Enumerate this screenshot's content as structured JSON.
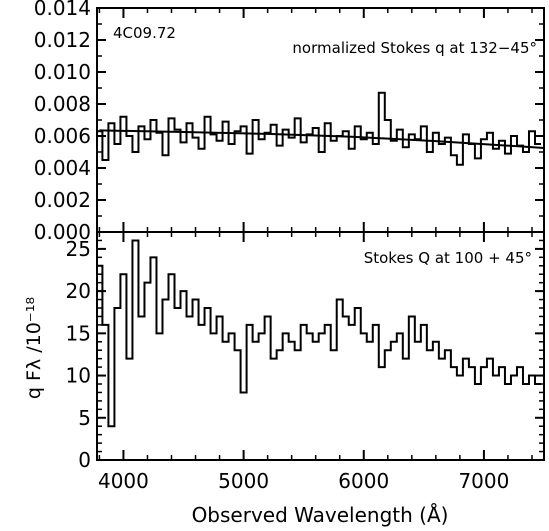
{
  "chart_data": [
    {
      "type": "line",
      "panel": "top",
      "object_label": "4C09.72",
      "annotation": "normalized Stokes q at 132−45°",
      "ylim": [
        0.0,
        0.014
      ],
      "yticks": [
        "0.000",
        "0.002",
        "0.004",
        "0.006",
        "0.008",
        "0.010",
        "0.012",
        "0.014"
      ],
      "xlim": [
        3780,
        7500
      ],
      "grid": false,
      "series": [
        {
          "style": "histogram-step",
          "x": [
            3800,
            3850,
            3900,
            3950,
            4000,
            4050,
            4100,
            4150,
            4200,
            4250,
            4300,
            4350,
            4400,
            4450,
            4500,
            4550,
            4600,
            4650,
            4700,
            4750,
            4800,
            4850,
            4900,
            4950,
            5000,
            5050,
            5100,
            5150,
            5200,
            5250,
            5300,
            5350,
            5400,
            5450,
            5500,
            5550,
            5600,
            5650,
            5700,
            5750,
            5800,
            5850,
            5900,
            5950,
            6000,
            6050,
            6100,
            6150,
            6200,
            6250,
            6300,
            6350,
            6400,
            6450,
            6500,
            6550,
            6600,
            6650,
            6700,
            6750,
            6800,
            6850,
            6900,
            6950,
            7000,
            7050,
            7100,
            7150,
            7200,
            7250,
            7300,
            7350,
            7400,
            7450
          ],
          "values": [
            0.0063,
            0.0045,
            0.0068,
            0.0055,
            0.0072,
            0.006,
            0.005,
            0.0066,
            0.0058,
            0.007,
            0.0062,
            0.0048,
            0.0071,
            0.0064,
            0.0056,
            0.0068,
            0.0059,
            0.0052,
            0.0072,
            0.0061,
            0.0057,
            0.0069,
            0.0055,
            0.0063,
            0.0066,
            0.0049,
            0.007,
            0.0058,
            0.0062,
            0.0067,
            0.0054,
            0.0064,
            0.0059,
            0.0071,
            0.0056,
            0.0061,
            0.0065,
            0.005,
            0.0068,
            0.0057,
            0.006,
            0.0063,
            0.0052,
            0.0066,
            0.0058,
            0.0062,
            0.0055,
            0.0087,
            0.007,
            0.0057,
            0.0064,
            0.0053,
            0.0061,
            0.0058,
            0.0066,
            0.005,
            0.0062,
            0.0055,
            0.0059,
            0.0048,
            0.0042,
            0.0061,
            0.0055,
            0.0046,
            0.0058,
            0.0062,
            0.0052,
            0.0057,
            0.0049,
            0.006,
            0.0054,
            0.005,
            0.0063,
            0.0055
          ]
        },
        {
          "style": "smooth-fit",
          "x": [
            3800,
            4500,
            5200,
            5900,
            6600,
            7300,
            7500
          ],
          "values": [
            0.00635,
            0.00625,
            0.00613,
            0.00595,
            0.00568,
            0.00535,
            0.00525
          ]
        }
      ]
    },
    {
      "type": "line",
      "panel": "bottom",
      "annotation": "Stokes Q at 100 + 45°",
      "ylabel": "q Fλ /10⁻¹⁸",
      "xlabel": "Observed Wavelength (Å)",
      "ylim": [
        0,
        27
      ],
      "yticks": [
        "0",
        "5",
        "10",
        "15",
        "20",
        "25"
      ],
      "xlim": [
        3780,
        7500
      ],
      "xticks": [
        "4000",
        "5000",
        "6000",
        "7000"
      ],
      "grid": false,
      "series": [
        {
          "style": "histogram-step",
          "x": [
            3800,
            3850,
            3900,
            3950,
            4000,
            4050,
            4100,
            4150,
            4200,
            4250,
            4300,
            4350,
            4400,
            4450,
            4500,
            4550,
            4600,
            4650,
            4700,
            4750,
            4800,
            4850,
            4900,
            4950,
            5000,
            5050,
            5100,
            5150,
            5200,
            5250,
            5300,
            5350,
            5400,
            5450,
            5500,
            5550,
            5600,
            5650,
            5700,
            5750,
            5800,
            5850,
            5900,
            5950,
            6000,
            6050,
            6100,
            6150,
            6200,
            6250,
            6300,
            6350,
            6400,
            6450,
            6500,
            6550,
            6600,
            6650,
            6700,
            6750,
            6800,
            6850,
            6900,
            6950,
            7000,
            7050,
            7100,
            7150,
            7200,
            7250,
            7300,
            7350,
            7400,
            7450
          ],
          "values": [
            23,
            16,
            4,
            18,
            22,
            12,
            26,
            17,
            21,
            24,
            15,
            19,
            22,
            18,
            20,
            17,
            19,
            16,
            18,
            15,
            17,
            14,
            15,
            13,
            8,
            16,
            14,
            15,
            17,
            12,
            13,
            15,
            14,
            13,
            16,
            15,
            14,
            15,
            16,
            13,
            19,
            17,
            16,
            18,
            15,
            14,
            16,
            11,
            13,
            14,
            15,
            12,
            17,
            14,
            16,
            13,
            14,
            12,
            13,
            11,
            10,
            12,
            11,
            9,
            11,
            12,
            10,
            11,
            9,
            10,
            11,
            9,
            10,
            9
          ]
        }
      ]
    }
  ]
}
